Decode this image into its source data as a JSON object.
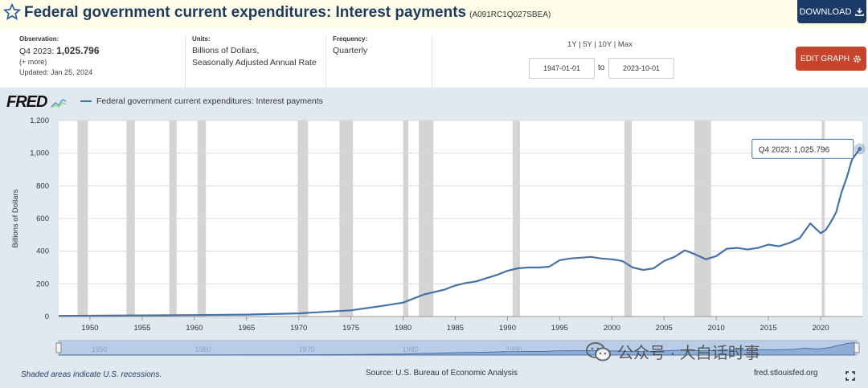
{
  "header": {
    "title": "Federal government current expenditures: Interest payments",
    "series_id": "(A091RC1Q027SBEA)",
    "download_label": "DOWNLOAD"
  },
  "meta": {
    "observation_label": "Observation:",
    "observation_period": "Q4 2023:",
    "observation_value": "1,025.796",
    "more_label": "(+ more)",
    "updated": "Updated: Jan 25, 2024",
    "units_label": "Units:",
    "units_line1": "Billions of Dollars,",
    "units_line2": "Seasonally Adjusted Annual Rate",
    "frequency_label": "Frequency:",
    "frequency_value": "Quarterly",
    "range_links": "1Y | 5Y | 10Y | Max",
    "start_date": "1947-01-01",
    "to_label": "to",
    "end_date": "2023-10-01",
    "edit_label": "EDIT GRAPH"
  },
  "chart_logo": "FRED",
  "footer": {
    "recessions_note": "Shaded areas indicate U.S. recessions.",
    "source": "Source: U.S. Bureau of Economic Analysis",
    "site": "fred.stlouisfed.org"
  },
  "watermark": "公众号 · 大白话时事",
  "tooltip": {
    "period": "Q4 2023:",
    "value": "1,025.796"
  },
  "colors": {
    "series": "#4572a7",
    "recession": "#d4d4d4",
    "plot_bg": "#ffffff",
    "frame_bg": "#e1e9f0"
  },
  "chart_data": {
    "type": "line",
    "ylabel": "Billions of Dollars",
    "ylim": [
      0,
      1200
    ],
    "yticks": [
      0,
      200,
      400,
      600,
      800,
      1000,
      1200
    ],
    "xlim": [
      1947,
      2024
    ],
    "xticks": [
      1950,
      1955,
      1960,
      1965,
      1970,
      1975,
      1980,
      1985,
      1990,
      1995,
      2000,
      2005,
      2010,
      2015,
      2020
    ],
    "grid": true,
    "legend_position": "top-left",
    "recessions": [
      [
        1948.8,
        1949.8
      ],
      [
        1953.5,
        1954.3
      ],
      [
        1957.6,
        1958.3
      ],
      [
        1960.3,
        1961.1
      ],
      [
        1969.9,
        1970.9
      ],
      [
        1973.9,
        1975.2
      ],
      [
        1980.0,
        1980.5
      ],
      [
        1981.5,
        1982.9
      ],
      [
        1990.5,
        1991.2
      ],
      [
        2001.2,
        2001.9
      ],
      [
        2007.9,
        2009.5
      ],
      [
        2020.1,
        2020.4
      ]
    ],
    "series": [
      {
        "name": "Federal government current expenditures: Interest payments",
        "x": [
          1947,
          1950,
          1955,
          1960,
          1965,
          1970,
          1975,
          1978,
          1980,
          1981,
          1982,
          1983,
          1984,
          1985,
          1986,
          1987,
          1988,
          1989,
          1990,
          1991,
          1992,
          1993,
          1994,
          1995,
          1996,
          1997,
          1998,
          1999,
          2000,
          2001,
          2002,
          2003,
          2004,
          2005,
          2006,
          2007,
          2008,
          2009,
          2010,
          2011,
          2012,
          2013,
          2014,
          2015,
          2016,
          2017,
          2018,
          2019,
          2020,
          2020.5,
          2021,
          2021.5,
          2022,
          2022.5,
          2023,
          2023.75
        ],
        "values": [
          4,
          5,
          7,
          9,
          12,
          19,
          38,
          65,
          85,
          110,
          135,
          150,
          165,
          190,
          205,
          215,
          235,
          255,
          280,
          295,
          300,
          300,
          305,
          345,
          355,
          360,
          365,
          355,
          350,
          340,
          300,
          285,
          295,
          340,
          365,
          405,
          380,
          350,
          370,
          415,
          420,
          410,
          420,
          440,
          430,
          450,
          480,
          570,
          510,
          530,
          580,
          640,
          760,
          850,
          960,
          1025.796
        ]
      }
    ]
  }
}
